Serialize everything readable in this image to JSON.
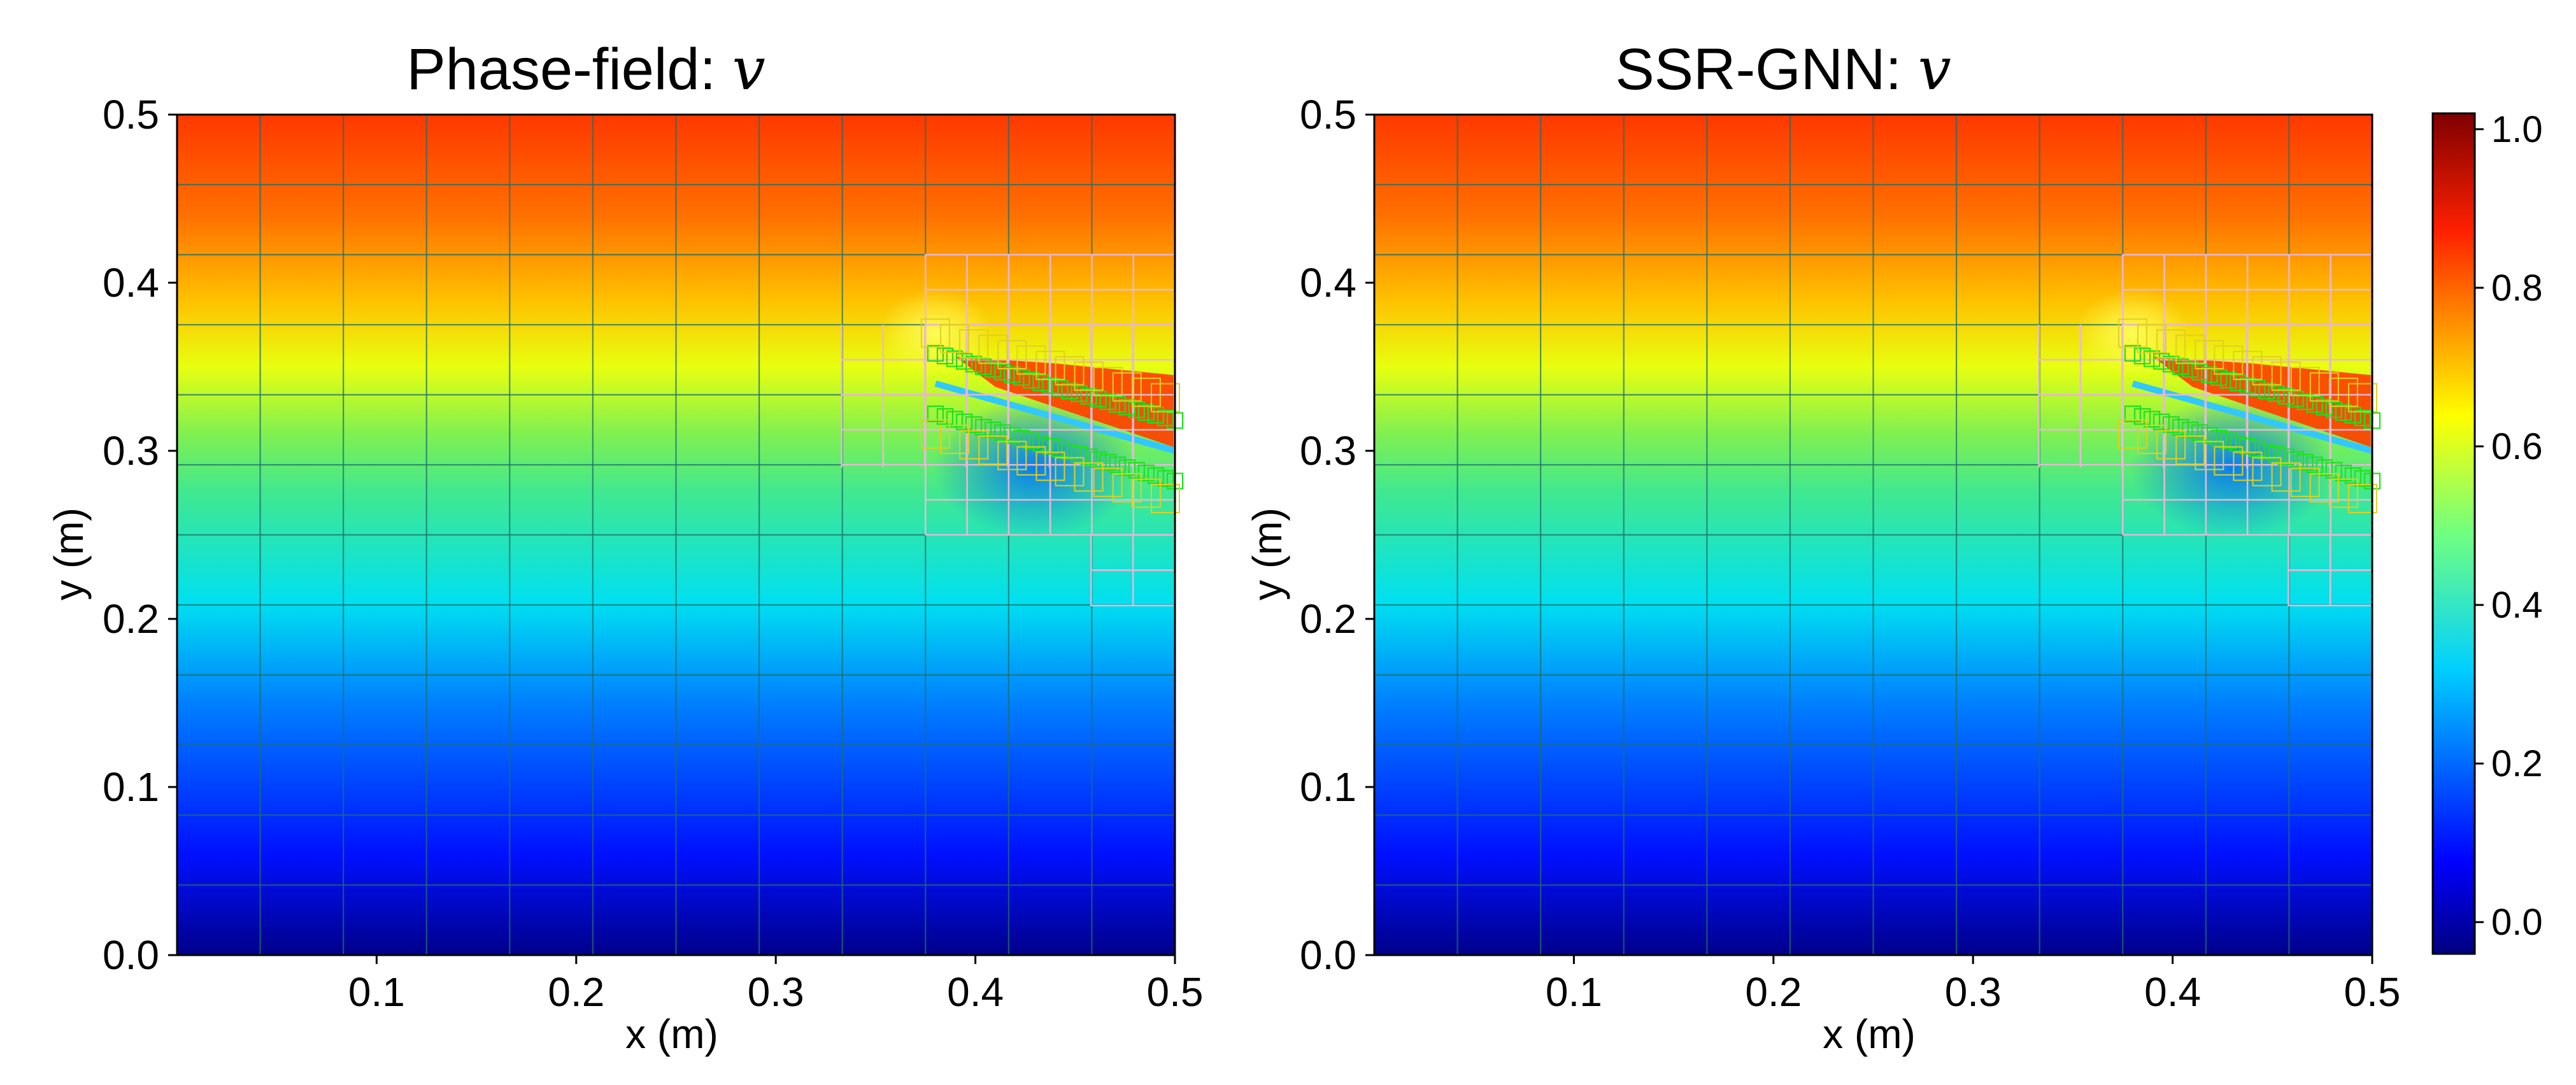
{
  "chart_data": [
    {
      "type": "heatmap",
      "title": "Phase-field: ",
      "title_symbol": "v",
      "xlabel": "x (m)",
      "ylabel": "y (m)",
      "xlim": [
        0.0,
        0.5
      ],
      "ylim": [
        0.0,
        0.5
      ],
      "xticks": [
        0.1,
        0.2,
        0.3,
        0.4,
        0.5
      ],
      "yticks": [
        0.0,
        0.1,
        0.2,
        0.3,
        0.4,
        0.5
      ],
      "xtick_labels": [
        "0.1",
        "0.2",
        "0.3",
        "0.4",
        "0.5"
      ],
      "ytick_labels": [
        "0.0",
        "0.1",
        "0.2",
        "0.3",
        "0.4",
        "0.5"
      ],
      "field": "v",
      "field_description_values": {
        "bottom": 0.0,
        "top": 0.85
      },
      "crack": {
        "start": [
          0.38,
          0.34
        ],
        "end": [
          0.5,
          0.3
        ]
      },
      "mesh": {
        "base_cells": 12,
        "refined_region_x": [
          0.333,
          0.5
        ],
        "refined_region_y": [
          0.208,
          0.417
        ]
      }
    },
    {
      "type": "heatmap",
      "title": "SSR-GNN: ",
      "title_symbol": "v",
      "xlabel": "x (m)",
      "ylabel": "y (m)",
      "xlim": [
        0.0,
        0.5
      ],
      "ylim": [
        0.0,
        0.5
      ],
      "xticks": [
        0.1,
        0.2,
        0.3,
        0.4,
        0.5
      ],
      "yticks": [
        0.0,
        0.1,
        0.2,
        0.3,
        0.4,
        0.5
      ],
      "xtick_labels": [
        "0.1",
        "0.2",
        "0.3",
        "0.4",
        "0.5"
      ],
      "ytick_labels": [
        "0.0",
        "0.1",
        "0.2",
        "0.3",
        "0.4",
        "0.5"
      ],
      "field": "v",
      "field_description_values": {
        "bottom": 0.0,
        "top": 0.85
      },
      "crack": {
        "start": [
          0.38,
          0.34
        ],
        "end": [
          0.5,
          0.3
        ]
      },
      "mesh": {
        "base_cells": 12,
        "refined_region_x": [
          0.333,
          0.5
        ],
        "refined_region_y": [
          0.208,
          0.417
        ]
      }
    }
  ],
  "colorbar": {
    "range": [
      -0.04,
      1.02
    ],
    "ticks": [
      0.0,
      0.2,
      0.4,
      0.6,
      0.8,
      1.0
    ],
    "tick_labels": [
      "0.0",
      "0.2",
      "0.4",
      "0.6",
      "0.8",
      "1.0"
    ],
    "colormap": "jet"
  }
}
